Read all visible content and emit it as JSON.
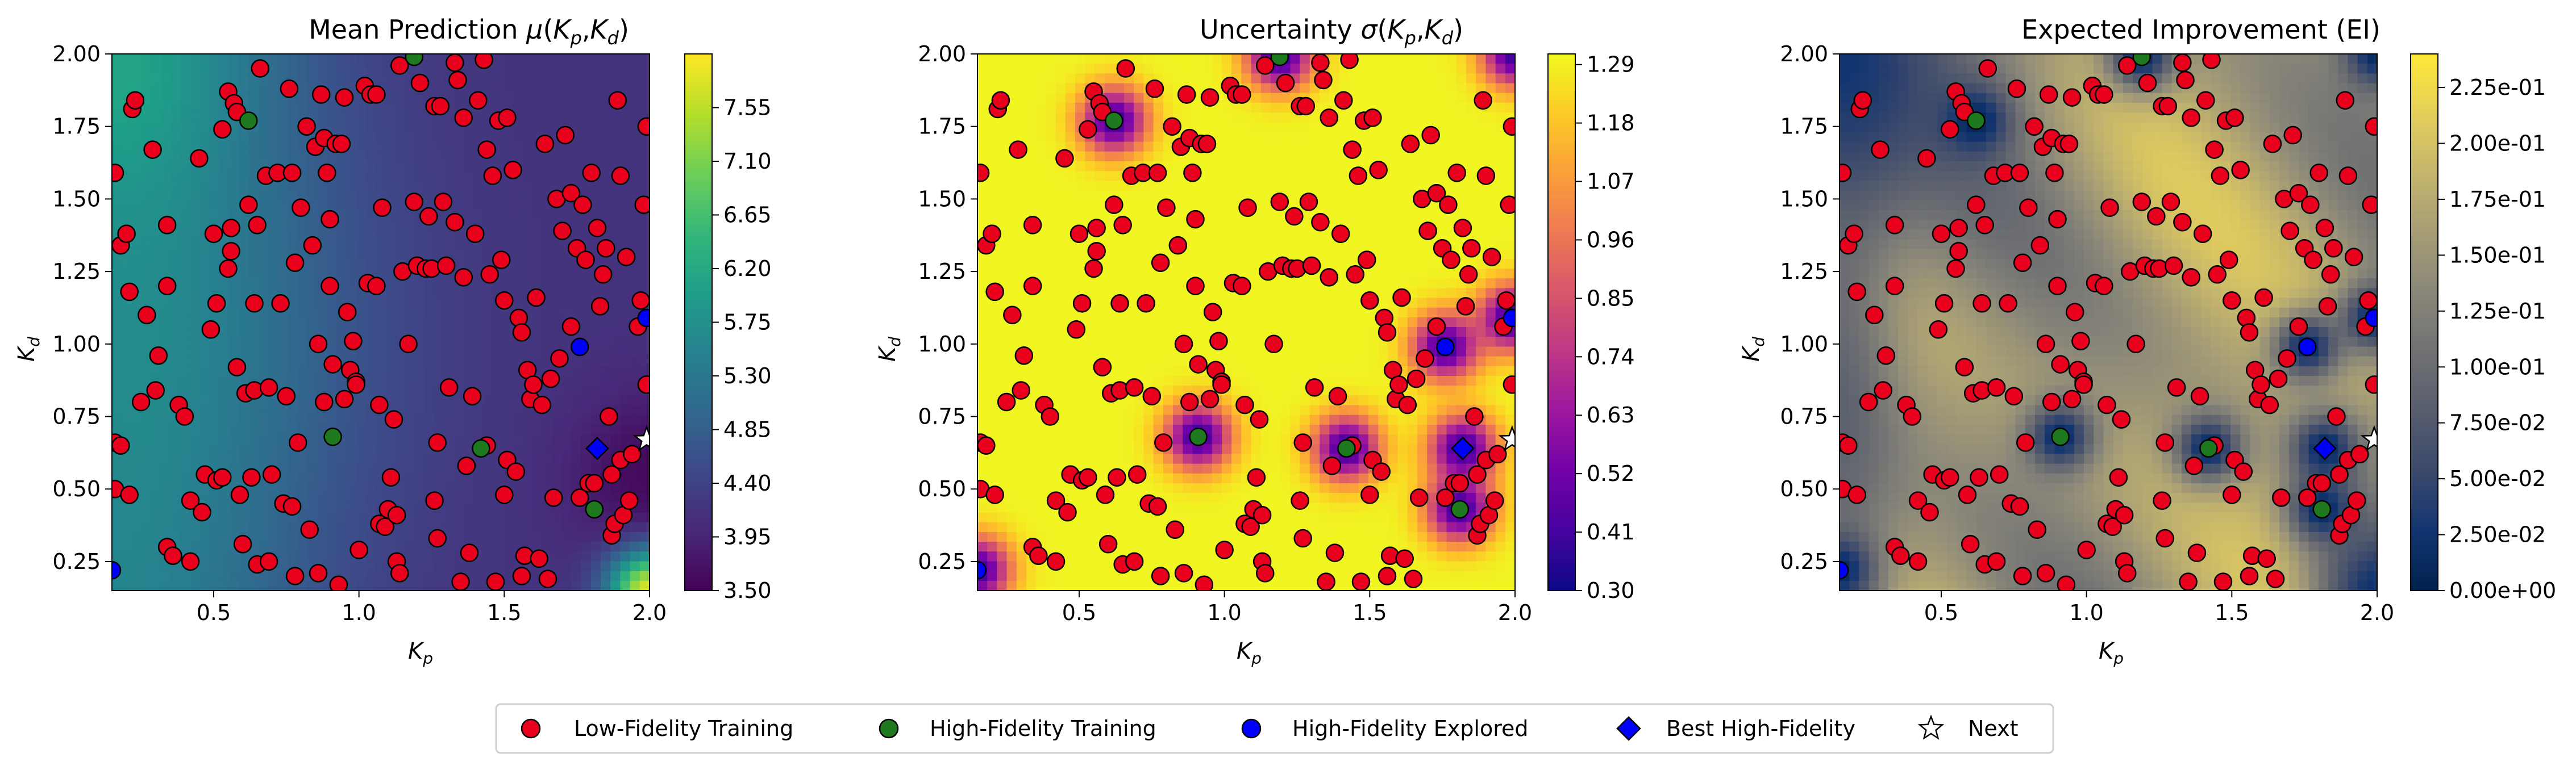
{
  "chart_data": [
    {
      "type": "heatmap",
      "title_parts": {
        "pre": "Mean Prediction ",
        "mu": "μ",
        "open": "(",
        "kp_base": "K",
        "kp_sub": "p",
        "comma": ",",
        "kd_base": "K",
        "kd_sub": "d",
        "close": ")"
      },
      "xlabel": {
        "base": "K",
        "sub": "p"
      },
      "ylabel": {
        "base": "K",
        "sub": "d"
      },
      "xlim": [
        0.15,
        2.0
      ],
      "ylim": [
        0.15,
        2.0
      ],
      "x_ticks": [
        0.5,
        1.0,
        1.5,
        2.0
      ],
      "x_tick_labels": [
        "0.5",
        "1.0",
        "1.5",
        "2.0"
      ],
      "y_ticks": [
        0.25,
        0.5,
        0.75,
        1.0,
        1.25,
        1.5,
        1.75,
        2.0
      ],
      "y_tick_labels": [
        "0.25",
        "0.50",
        "0.75",
        "1.00",
        "1.25",
        "1.50",
        "1.75",
        "2.00"
      ],
      "colormap": "viridis",
      "colorbar_range": [
        3.5,
        8.0
      ],
      "colorbar_ticks": [
        3.5,
        3.95,
        4.4,
        4.85,
        5.3,
        5.75,
        6.2,
        6.65,
        7.1,
        7.55
      ],
      "colorbar_tick_labels": [
        "3.50",
        "3.95",
        "4.40",
        "4.85",
        "5.30",
        "5.75",
        "6.20",
        "6.65",
        "7.10",
        "7.55"
      ]
    },
    {
      "type": "heatmap",
      "title_parts": {
        "pre": "Uncertainty ",
        "sigma": "σ",
        "open": "(",
        "kp_base": "K",
        "kp_sub": "p",
        "comma": ",",
        "kd_base": "K",
        "kd_sub": "d",
        "close": ")"
      },
      "xlabel": {
        "base": "K",
        "sub": "p"
      },
      "ylabel": {
        "base": "K",
        "sub": "d"
      },
      "xlim": [
        0.15,
        2.0
      ],
      "ylim": [
        0.15,
        2.0
      ],
      "x_ticks": [
        0.5,
        1.0,
        1.5,
        2.0
      ],
      "x_tick_labels": [
        "0.5",
        "1.0",
        "1.5",
        "2.0"
      ],
      "y_ticks": [
        0.25,
        0.5,
        0.75,
        1.0,
        1.25,
        1.5,
        1.75,
        2.0
      ],
      "y_tick_labels": [
        "0.25",
        "0.50",
        "0.75",
        "1.00",
        "1.25",
        "1.50",
        "1.75",
        "2.00"
      ],
      "colormap": "plasma",
      "colorbar_range": [
        0.3,
        1.31
      ],
      "colorbar_ticks": [
        0.3,
        0.41,
        0.52,
        0.63,
        0.74,
        0.85,
        0.96,
        1.07,
        1.18,
        1.29
      ],
      "colorbar_tick_labels": [
        "0.30",
        "0.41",
        "0.52",
        "0.63",
        "0.74",
        "0.85",
        "0.96",
        "1.07",
        "1.18",
        "1.29"
      ]
    },
    {
      "type": "heatmap",
      "title": "Expected Improvement (EI)",
      "xlabel": {
        "base": "K",
        "sub": "p"
      },
      "ylabel": {
        "base": "K",
        "sub": "d"
      },
      "xlim": [
        0.15,
        2.0
      ],
      "ylim": [
        0.15,
        2.0
      ],
      "x_ticks": [
        0.5,
        1.0,
        1.5,
        2.0
      ],
      "x_tick_labels": [
        "0.5",
        "1.0",
        "1.5",
        "2.0"
      ],
      "y_ticks": [
        0.25,
        0.5,
        0.75,
        1.0,
        1.25,
        1.5,
        1.75,
        2.0
      ],
      "y_tick_labels": [
        "0.25",
        "0.50",
        "0.75",
        "1.00",
        "1.25",
        "1.50",
        "1.75",
        "2.00"
      ],
      "colormap": "cividis",
      "colorbar_range": [
        0.0,
        0.24
      ],
      "colorbar_ticks": [
        0.0,
        0.025,
        0.05,
        0.075,
        0.1,
        0.125,
        0.15,
        0.175,
        0.2,
        0.225
      ],
      "colorbar_tick_labels": [
        "0.00e+00",
        "2.50e-02",
        "5.00e-02",
        "7.50e-02",
        "1.00e-01",
        "1.25e-01",
        "1.50e-01",
        "1.75e-01",
        "2.00e-01",
        "2.25e-01"
      ]
    }
  ],
  "points": {
    "low_fidelity_training": [
      [
        0.16,
        1.59
      ],
      [
        0.18,
        1.34
      ],
      [
        0.2,
        1.38
      ],
      [
        0.21,
        1.18
      ],
      [
        0.22,
        1.81
      ],
      [
        0.23,
        1.84
      ],
      [
        0.16,
        0.66
      ],
      [
        0.18,
        0.65
      ],
      [
        0.16,
        0.5
      ],
      [
        0.21,
        0.48
      ],
      [
        0.25,
        0.8
      ],
      [
        0.27,
        1.1
      ],
      [
        0.29,
        1.67
      ],
      [
        0.3,
        0.84
      ],
      [
        0.31,
        0.96
      ],
      [
        0.34,
        1.41
      ],
      [
        0.34,
        1.2
      ],
      [
        0.34,
        0.3
      ],
      [
        0.36,
        0.27
      ],
      [
        0.38,
        0.79
      ],
      [
        0.4,
        0.75
      ],
      [
        0.42,
        0.25
      ],
      [
        0.42,
        0.46
      ],
      [
        0.45,
        1.64
      ],
      [
        0.46,
        0.42
      ],
      [
        0.47,
        0.55
      ],
      [
        0.49,
        1.05
      ],
      [
        0.5,
        1.38
      ],
      [
        0.51,
        1.14
      ],
      [
        0.51,
        0.53
      ],
      [
        0.53,
        1.74
      ],
      [
        0.53,
        0.54
      ],
      [
        0.55,
        1.87
      ],
      [
        0.55,
        1.26
      ],
      [
        0.56,
        1.4
      ],
      [
        0.56,
        1.32
      ],
      [
        0.57,
        1.83
      ],
      [
        0.58,
        1.8
      ],
      [
        0.58,
        0.92
      ],
      [
        0.59,
        0.48
      ],
      [
        0.6,
        0.31
      ],
      [
        0.61,
        0.83
      ],
      [
        0.62,
        1.48
      ],
      [
        0.63,
        0.54
      ],
      [
        0.64,
        1.14
      ],
      [
        0.64,
        0.84
      ],
      [
        0.65,
        1.41
      ],
      [
        0.65,
        0.24
      ],
      [
        0.66,
        1.95
      ],
      [
        0.68,
        1.58
      ],
      [
        0.69,
        0.85
      ],
      [
        0.69,
        0.25
      ],
      [
        0.7,
        0.55
      ],
      [
        0.72,
        1.59
      ],
      [
        0.73,
        1.14
      ],
      [
        0.74,
        0.45
      ],
      [
        0.75,
        0.82
      ],
      [
        0.76,
        1.88
      ],
      [
        0.77,
        1.59
      ],
      [
        0.77,
        0.44
      ],
      [
        0.78,
        1.28
      ],
      [
        0.78,
        0.2
      ],
      [
        0.79,
        0.66
      ],
      [
        0.8,
        1.47
      ],
      [
        0.82,
        1.75
      ],
      [
        0.83,
        0.36
      ],
      [
        0.84,
        1.34
      ],
      [
        0.85,
        1.68
      ],
      [
        0.86,
        1.0
      ],
      [
        0.86,
        0.21
      ],
      [
        0.87,
        1.86
      ],
      [
        0.88,
        1.71
      ],
      [
        0.88,
        0.8
      ],
      [
        0.89,
        1.59
      ],
      [
        0.9,
        1.43
      ],
      [
        0.9,
        1.2
      ],
      [
        0.91,
        0.93
      ],
      [
        0.92,
        1.69
      ],
      [
        0.93,
        0.17
      ],
      [
        0.94,
        1.69
      ],
      [
        0.95,
        1.85
      ],
      [
        0.95,
        0.81
      ],
      [
        0.96,
        1.11
      ],
      [
        0.97,
        0.91
      ],
      [
        0.98,
        1.01
      ],
      [
        0.99,
        0.87
      ],
      [
        0.99,
        0.86
      ],
      [
        1.0,
        0.29
      ],
      [
        1.02,
        1.89
      ],
      [
        1.03,
        1.21
      ],
      [
        1.04,
        1.86
      ],
      [
        1.06,
        1.86
      ],
      [
        1.06,
        1.2
      ],
      [
        1.07,
        0.38
      ],
      [
        1.07,
        0.79
      ],
      [
        1.08,
        1.47
      ],
      [
        1.09,
        0.37
      ],
      [
        1.1,
        0.43
      ],
      [
        1.11,
        0.54
      ],
      [
        1.12,
        0.74
      ],
      [
        1.13,
        0.41
      ],
      [
        1.13,
        0.25
      ],
      [
        1.14,
        0.21
      ],
      [
        1.14,
        1.96
      ],
      [
        1.15,
        1.25
      ],
      [
        1.17,
        1.0
      ],
      [
        1.19,
        1.49
      ],
      [
        1.2,
        1.27
      ],
      [
        1.21,
        1.9
      ],
      [
        1.23,
        1.26
      ],
      [
        1.24,
        1.44
      ],
      [
        1.25,
        1.26
      ],
      [
        1.26,
        1.82
      ],
      [
        1.26,
        0.46
      ],
      [
        1.27,
        0.66
      ],
      [
        1.27,
        0.33
      ],
      [
        1.28,
        1.82
      ],
      [
        1.29,
        1.49
      ],
      [
        1.3,
        1.27
      ],
      [
        1.31,
        0.85
      ],
      [
        1.33,
        1.97
      ],
      [
        1.33,
        1.42
      ],
      [
        1.34,
        1.91
      ],
      [
        1.35,
        0.18
      ],
      [
        1.36,
        1.78
      ],
      [
        1.36,
        1.23
      ],
      [
        1.37,
        0.58
      ],
      [
        1.38,
        0.28
      ],
      [
        1.39,
        0.82
      ],
      [
        1.4,
        1.38
      ],
      [
        1.41,
        1.84
      ],
      [
        1.43,
        1.98
      ],
      [
        1.44,
        1.67
      ],
      [
        1.44,
        0.65
      ],
      [
        1.45,
        1.24
      ],
      [
        1.46,
        1.58
      ],
      [
        1.47,
        0.18
      ],
      [
        1.48,
        1.77
      ],
      [
        1.49,
        1.29
      ],
      [
        1.5,
        1.15
      ],
      [
        1.5,
        0.48
      ],
      [
        1.51,
        1.78
      ],
      [
        1.51,
        0.6
      ],
      [
        1.53,
        1.6
      ],
      [
        1.54,
        0.56
      ],
      [
        1.55,
        1.09
      ],
      [
        1.56,
        0.2
      ],
      [
        1.56,
        1.04
      ],
      [
        1.57,
        0.27
      ],
      [
        1.58,
        0.91
      ],
      [
        1.59,
        0.81
      ],
      [
        1.6,
        0.86
      ],
      [
        1.61,
        1.16
      ],
      [
        1.62,
        0.26
      ],
      [
        1.63,
        0.79
      ],
      [
        1.64,
        1.69
      ],
      [
        1.65,
        0.19
      ],
      [
        1.66,
        0.88
      ],
      [
        1.67,
        0.47
      ],
      [
        1.68,
        1.5
      ],
      [
        1.69,
        0.95
      ],
      [
        1.7,
        1.39
      ],
      [
        1.71,
        1.72
      ],
      [
        1.73,
        1.06
      ],
      [
        1.73,
        1.52
      ],
      [
        1.75,
        1.33
      ],
      [
        1.76,
        0.47
      ],
      [
        1.77,
        1.48
      ],
      [
        1.78,
        1.29
      ],
      [
        1.79,
        0.52
      ],
      [
        1.8,
        1.59
      ],
      [
        1.81,
        0.52
      ],
      [
        1.82,
        1.4
      ],
      [
        1.83,
        1.13
      ],
      [
        1.84,
        1.24
      ],
      [
        1.85,
        1.33
      ],
      [
        1.86,
        0.75
      ],
      [
        1.87,
        0.55
      ],
      [
        1.87,
        0.34
      ],
      [
        1.88,
        0.38
      ],
      [
        1.89,
        1.84
      ],
      [
        1.9,
        1.58
      ],
      [
        1.9,
        0.6
      ],
      [
        1.91,
        0.41
      ],
      [
        1.92,
        1.3
      ],
      [
        1.93,
        0.46
      ],
      [
        1.94,
        0.62
      ],
      [
        1.96,
        1.06
      ],
      [
        1.97,
        1.15
      ],
      [
        1.98,
        1.48
      ],
      [
        1.99,
        0.86
      ],
      [
        1.99,
        1.75
      ]
    ],
    "high_fidelity_training": [
      [
        0.62,
        1.77
      ],
      [
        0.91,
        0.68
      ],
      [
        1.19,
        1.99
      ],
      [
        1.42,
        0.64
      ],
      [
        1.81,
        0.43
      ]
    ],
    "high_fidelity_explored": [
      [
        0.15,
        0.22
      ],
      [
        1.76,
        0.99
      ],
      [
        1.99,
        1.09
      ]
    ],
    "best_high_fidelity": [
      1.82,
      0.64
    ],
    "next": [
      1.99,
      0.67
    ],
    "uncertainty_wells": [
      [
        0.15,
        0.22
      ],
      [
        0.62,
        1.77
      ],
      [
        0.91,
        0.68
      ],
      [
        1.19,
        1.99
      ],
      [
        1.42,
        0.64
      ],
      [
        1.81,
        0.43
      ],
      [
        1.76,
        0.99
      ],
      [
        1.99,
        1.09
      ],
      [
        1.82,
        0.64
      ],
      [
        2.0,
        2.0
      ]
    ]
  },
  "legend": {
    "items": [
      {
        "label": "Low-Fidelity Training",
        "marker": "circle",
        "color": "#e8001c"
      },
      {
        "label": "High-Fidelity Training",
        "marker": "circle",
        "color": "#1f7a1f"
      },
      {
        "label": "High-Fidelity Explored",
        "marker": "circle",
        "color": "#0000ff"
      },
      {
        "label": "Best High-Fidelity",
        "marker": "diamond",
        "color": "#0000ff"
      },
      {
        "label": "Next",
        "marker": "star",
        "color": "#ffffff"
      }
    ]
  }
}
